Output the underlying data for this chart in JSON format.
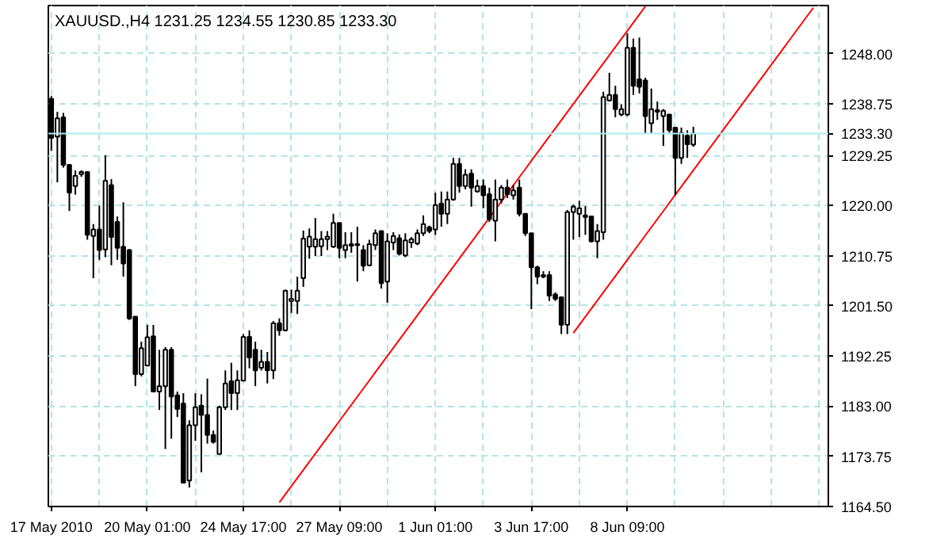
{
  "chart_data": {
    "type": "candlestick",
    "title": "XAUUSD.,H4  1231.25 1234.55 1230.85 1233.30",
    "categories": [
      "17 May 2010",
      null,
      null,
      null,
      null,
      null,
      null,
      null,
      null,
      null,
      null,
      null,
      null,
      null,
      null,
      null,
      "20 May 01:00",
      null,
      null,
      null,
      null,
      null,
      null,
      null,
      null,
      null,
      null,
      null,
      null,
      null,
      null,
      null,
      "24 May 17:00",
      null,
      null,
      null,
      null,
      null,
      null,
      null,
      null,
      null,
      null,
      null,
      null,
      null,
      null,
      null,
      "27 May 09:00",
      null,
      null,
      null,
      null,
      null,
      null,
      null,
      null,
      null,
      null,
      null,
      null,
      null,
      null,
      null,
      "1 Jun 01:00",
      null,
      null,
      null,
      null,
      null,
      null,
      null,
      null,
      null,
      null,
      null,
      null,
      null,
      null,
      null,
      "3 Jun 17:00",
      null,
      null,
      null,
      null,
      null,
      null,
      null,
      null,
      null,
      null,
      null,
      null,
      null,
      null,
      null,
      "8 Jun 09:00",
      null,
      null,
      null,
      null,
      null,
      null,
      null,
      null,
      null,
      null,
      null,
      null,
      null,
      null,
      null,
      null,
      null,
      null,
      null,
      null,
      null,
      null,
      null,
      null,
      null,
      null,
      null,
      null,
      null,
      null,
      null,
      null,
      null
    ],
    "ohlc": [
      [
        1239.7,
        1240.2,
        1230.1,
        1232.5
      ],
      [
        1232.7,
        1237.3,
        1224.3,
        1236.1
      ],
      [
        1236.3,
        1237.1,
        1227.0,
        1227.5
      ],
      [
        1227.5,
        1227.6,
        1219.0,
        1222.4
      ],
      [
        1223.6,
        1226.5,
        1222.0,
        1225.5
      ],
      [
        1225.8,
        1226.5,
        1225.3,
        1226.2
      ],
      [
        1226.2,
        1226.3,
        1213.7,
        1214.6
      ],
      [
        1214.4,
        1216.6,
        1206.6,
        1215.6
      ],
      [
        1215.6,
        1220.0,
        1210.0,
        1211.8
      ],
      [
        1211.9,
        1229.3,
        1210.5,
        1224.6
      ],
      [
        1223.8,
        1224.9,
        1209.0,
        1214.2
      ],
      [
        1217.0,
        1218.0,
        1210.0,
        1212.2
      ],
      [
        1212.4,
        1220.6,
        1206.9,
        1209.3
      ],
      [
        1211.8,
        1212.0,
        1198.9,
        1199.2
      ],
      [
        1199.5,
        1199.5,
        1186.7,
        1188.9
      ],
      [
        1188.9,
        1194.9,
        1188.5,
        1193.7
      ],
      [
        1190.5,
        1198.0,
        1190.5,
        1195.7
      ],
      [
        1195.9,
        1198.0,
        1185.7,
        1185.7
      ],
      [
        1185.7,
        1193.4,
        1182.3,
        1186.7
      ],
      [
        1186.7,
        1193.9,
        1175.1,
        1193.4
      ],
      [
        1193.4,
        1193.9,
        1177.0,
        1184.8
      ],
      [
        1185.0,
        1185.7,
        1181.0,
        1182.5
      ],
      [
        1183.5,
        1185.4,
        1168.9,
        1168.9
      ],
      [
        1169.3,
        1180.4,
        1168.0,
        1179.5
      ],
      [
        1179.5,
        1185.4,
        1176.6,
        1182.8
      ],
      [
        1183.1,
        1185.2,
        1170.8,
        1181.4
      ],
      [
        1181.4,
        1188.1,
        1176.1,
        1177.7
      ],
      [
        1177.7,
        1178.5,
        1176.1,
        1176.4
      ],
      [
        1174.2,
        1183.1,
        1174.2,
        1182.8
      ],
      [
        1182.8,
        1189.6,
        1182.3,
        1187.2
      ],
      [
        1187.6,
        1191.0,
        1182.3,
        1185.4
      ],
      [
        1185.4,
        1189.6,
        1182.3,
        1187.8
      ],
      [
        1187.7,
        1196.3,
        1187.7,
        1195.8
      ],
      [
        1195.8,
        1197.0,
        1190.0,
        1192.0
      ],
      [
        1193.4,
        1194.9,
        1186.7,
        1189.6
      ],
      [
        1190.1,
        1193.4,
        1189.6,
        1191.2
      ],
      [
        1191.2,
        1193.0,
        1187.2,
        1189.6
      ],
      [
        1189.6,
        1198.7,
        1188.0,
        1198.3
      ],
      [
        1198.3,
        1199.2,
        1196.0,
        1197.0
      ],
      [
        1197.0,
        1204.5,
        1196.8,
        1204.3
      ],
      [
        1202.4,
        1204.5,
        1200.2,
        1202.8
      ],
      [
        1202.4,
        1206.9,
        1200.0,
        1204.3
      ],
      [
        1206.6,
        1215.4,
        1205.0,
        1213.9
      ],
      [
        1212.4,
        1215.8,
        1210.2,
        1214.3
      ],
      [
        1212.4,
        1217.7,
        1210.7,
        1213.8
      ],
      [
        1212.5,
        1215.3,
        1210.7,
        1213.8
      ],
      [
        1213.8,
        1215.3,
        1211.8,
        1214.3
      ],
      [
        1212.4,
        1218.5,
        1212.2,
        1216.8
      ],
      [
        1216.8,
        1216.8,
        1210.3,
        1212.2
      ],
      [
        1211.8,
        1215.1,
        1210.3,
        1212.7
      ],
      [
        1212.9,
        1215.1,
        1211.3,
        1212.6
      ],
      [
        1212.9,
        1216.1,
        1206.0,
        1212.7
      ],
      [
        1211.8,
        1212.7,
        1207.9,
        1208.9
      ],
      [
        1209.0,
        1213.7,
        1208.9,
        1212.9
      ],
      [
        1212.7,
        1215.6,
        1211.8,
        1214.9
      ],
      [
        1215.3,
        1215.3,
        1204.7,
        1205.7
      ],
      [
        1206.0,
        1214.9,
        1202.1,
        1213.4
      ],
      [
        1213.2,
        1215.1,
        1211.8,
        1214.4
      ],
      [
        1214.0,
        1214.7,
        1210.8,
        1211.1
      ],
      [
        1210.8,
        1214.9,
        1210.5,
        1213.6
      ],
      [
        1213.2,
        1214.2,
        1212.2,
        1213.8
      ],
      [
        1213.0,
        1215.6,
        1212.7,
        1214.9
      ],
      [
        1214.9,
        1218.2,
        1214.4,
        1216.6
      ],
      [
        1216.0,
        1216.3,
        1214.9,
        1215.3
      ],
      [
        1215.6,
        1222.4,
        1214.6,
        1220.1
      ],
      [
        1220.4,
        1222.6,
        1216.1,
        1218.5
      ],
      [
        1218.5,
        1222.6,
        1216.6,
        1221.1
      ],
      [
        1221.1,
        1228.8,
        1220.9,
        1227.7
      ],
      [
        1227.7,
        1228.8,
        1222.4,
        1223.6
      ],
      [
        1223.6,
        1226.7,
        1223.0,
        1225.7
      ],
      [
        1225.9,
        1226.7,
        1219.8,
        1223.3
      ],
      [
        1222.6,
        1224.8,
        1222.4,
        1223.6
      ],
      [
        1223.6,
        1224.8,
        1219.5,
        1221.9
      ],
      [
        1222.1,
        1223.3,
        1217.0,
        1217.5
      ],
      [
        1217.2,
        1224.8,
        1213.4,
        1221.1
      ],
      [
        1221.1,
        1223.8,
        1220.4,
        1223.3
      ],
      [
        1223.3,
        1224.8,
        1221.4,
        1222.1
      ],
      [
        1221.9,
        1223.8,
        1221.1,
        1222.8
      ],
      [
        1223.3,
        1224.8,
        1218.0,
        1218.5
      ],
      [
        1218.5,
        1218.5,
        1214.4,
        1214.9
      ],
      [
        1214.9,
        1214.9,
        1200.9,
        1208.6
      ],
      [
        1208.6,
        1208.9,
        1205.5,
        1206.9
      ],
      [
        1207.2,
        1207.9,
        1206.6,
        1206.9
      ],
      [
        1207.2,
        1207.9,
        1202.4,
        1203.4
      ],
      [
        1203.6,
        1204.0,
        1202.4,
        1202.8
      ],
      [
        1203.1,
        1203.1,
        1196.3,
        1198.0
      ],
      [
        1198.0,
        1219.2,
        1196.3,
        1218.8
      ],
      [
        1218.8,
        1220.2,
        1213.7,
        1219.8
      ],
      [
        1218.5,
        1220.9,
        1214.2,
        1219.5
      ],
      [
        1218.2,
        1219.9,
        1214.6,
        1217.9
      ],
      [
        1218.0,
        1218.0,
        1213.2,
        1213.4
      ],
      [
        1213.4,
        1216.6,
        1210.3,
        1215.3
      ],
      [
        1215.1,
        1241.0,
        1213.7,
        1240.0
      ],
      [
        1239.4,
        1244.5,
        1239.2,
        1240.4
      ],
      [
        1240.4,
        1242.1,
        1236.3,
        1237.8
      ],
      [
        1236.8,
        1238.7,
        1236.5,
        1237.8
      ],
      [
        1236.8,
        1251.8,
        1236.5,
        1249.1
      ],
      [
        1249.1,
        1250.8,
        1240.4,
        1242.1
      ],
      [
        1243.3,
        1251.0,
        1240.7,
        1241.9
      ],
      [
        1243.1,
        1243.6,
        1233.4,
        1236.5
      ],
      [
        1235.2,
        1241.6,
        1233.4,
        1237.8
      ],
      [
        1237.3,
        1239.2,
        1235.8,
        1237.6
      ],
      [
        1236.5,
        1237.8,
        1231.0,
        1237.5
      ],
      [
        1236.8,
        1236.8,
        1233.4,
        1233.9
      ],
      [
        1234.4,
        1234.4,
        1221.9,
        1228.8
      ],
      [
        1228.8,
        1234.4,
        1227.7,
        1233.4
      ],
      [
        1232.9,
        1233.9,
        1228.8,
        1231.3
      ],
      [
        1231.25,
        1234.55,
        1230.85,
        1233.3
      ],
      null,
      null,
      null,
      null,
      null,
      null,
      null,
      null,
      null,
      null,
      null,
      null,
      null,
      null,
      null,
      null,
      null,
      null,
      null,
      null,
      null,
      null
    ],
    "series": [
      {
        "type": "line",
        "color": "#ff0000",
        "values": [
          null,
          null,
          null,
          null,
          null,
          null,
          null,
          null,
          null,
          null,
          null,
          null,
          null,
          null,
          null,
          null,
          null,
          null,
          null,
          null,
          null,
          null,
          null,
          null,
          null,
          null,
          null,
          null,
          null,
          null,
          null,
          null,
          null,
          null,
          null,
          null,
          null,
          null,
          1165.25,
          1166.75,
          1168.25,
          1169.75,
          1171.25,
          1172.75,
          1174.25,
          1175.75,
          1177.25,
          1178.75,
          1180.25,
          1181.75,
          1183.25,
          1184.75,
          1186.25,
          1187.75,
          1189.25,
          1190.75,
          1192.25,
          1193.75,
          1195.25,
          1196.75,
          1198.25,
          1199.75,
          1201.25,
          1202.75,
          1204.25,
          1205.75,
          1207.25,
          1208.75,
          1210.25,
          1211.75,
          1213.25,
          1214.75,
          1216.25,
          1217.75,
          1219.25,
          1220.75,
          1222.25,
          1223.75,
          1225.25,
          1226.75,
          1228.25,
          1229.75,
          1231.25,
          1232.75,
          1234.25,
          1235.75,
          1237.25,
          1238.75,
          1240.25,
          1241.75,
          1243.25,
          1244.75,
          1246.25,
          1247.75,
          1249.25,
          1250.75,
          1252.25,
          1253.75,
          1255.25,
          1256.75,
          null,
          null,
          null,
          null,
          null,
          null,
          null,
          null,
          null,
          null,
          null,
          null,
          null,
          null,
          null,
          null,
          null,
          null,
          null,
          null,
          null,
          null,
          null,
          null,
          null,
          null,
          null,
          null,
          null,
          null
        ]
      },
      {
        "type": "line",
        "color": "#ff0000",
        "values": [
          null,
          null,
          null,
          null,
          null,
          null,
          null,
          null,
          null,
          null,
          null,
          null,
          null,
          null,
          null,
          null,
          null,
          null,
          null,
          null,
          null,
          null,
          null,
          null,
          null,
          null,
          null,
          null,
          null,
          null,
          null,
          null,
          null,
          null,
          null,
          null,
          null,
          null,
          null,
          null,
          null,
          null,
          null,
          null,
          null,
          null,
          null,
          null,
          null,
          null,
          null,
          null,
          null,
          null,
          null,
          null,
          null,
          null,
          null,
          null,
          null,
          null,
          null,
          null,
          null,
          null,
          null,
          null,
          null,
          null,
          null,
          null,
          null,
          null,
          null,
          null,
          null,
          null,
          null,
          null,
          null,
          null,
          null,
          null,
          null,
          null,
          null,
          1196.5,
          1198.0,
          1199.5,
          1201.0,
          1202.5,
          1204.0,
          1205.5,
          1207.0,
          1208.5,
          1210.0,
          1211.5,
          1213.0,
          1214.5,
          1216.0,
          1217.5,
          1219.0,
          1220.5,
          1222.0,
          1223.5,
          1225.0,
          1226.5,
          1228.0,
          1229.5,
          1231.0,
          1232.5,
          1234.0,
          1235.5,
          1237.0,
          1238.5,
          1240.0,
          1241.5,
          1243.0,
          1244.5,
          1246.0,
          1247.5,
          1249.0,
          1250.5,
          1252.0,
          1253.5,
          1255.0,
          1256.5,
          null,
          null
        ]
      }
    ],
    "ref_lines": [
      {
        "axis": "y",
        "value": 1233.3,
        "label": "1233.30",
        "color": "#aeeeee"
      }
    ],
    "ylim": [
      1164.5,
      1256.9
    ],
    "yticks": [
      {
        "value": 1164.5,
        "label": "1164.50"
      },
      {
        "value": 1173.75,
        "label": "1173.75"
      },
      {
        "value": 1183,
        "label": "1183.00"
      },
      {
        "value": 1192.25,
        "label": "1192.25"
      },
      {
        "value": 1201.5,
        "label": "1201.50"
      },
      {
        "value": 1210.75,
        "label": "1210.75"
      },
      {
        "value": 1220,
        "label": "1220.00"
      },
      {
        "value": 1229.25,
        "label": "1229.25"
      },
      {
        "value": 1238.75,
        "label": "1238.75"
      },
      {
        "value": 1248,
        "label": "1248.00"
      }
    ],
    "grid": true
  }
}
